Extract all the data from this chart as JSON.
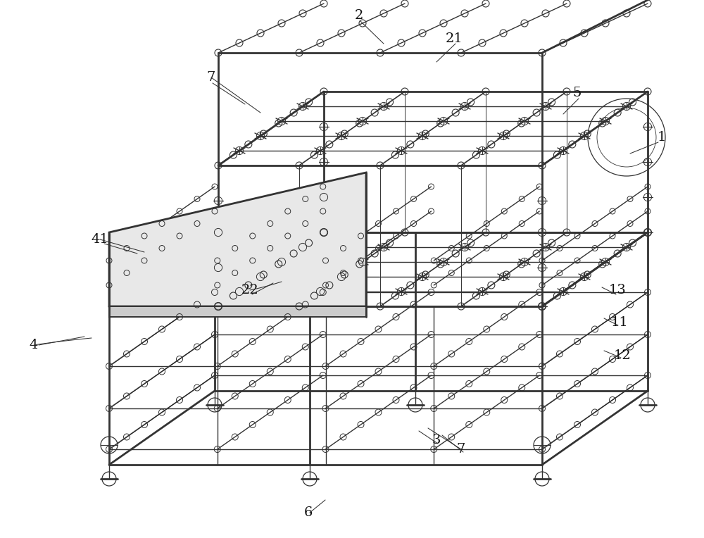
{
  "background_color": "#ffffff",
  "line_color": "#333333",
  "lw_main": 1.4,
  "lw_thin": 0.7,
  "lw_thick": 2.0,
  "lw_med": 1.0,
  "figsize": [
    10.0,
    7.64
  ],
  "dpi": 100,
  "labels": [
    [
      "1",
      940,
      195
    ],
    [
      "2",
      510,
      22
    ],
    [
      "3",
      620,
      625
    ],
    [
      "4",
      48,
      490
    ],
    [
      "5",
      820,
      132
    ],
    [
      "6",
      438,
      728
    ],
    [
      "7",
      300,
      110
    ],
    [
      "7",
      655,
      638
    ],
    [
      "11",
      880,
      458
    ],
    [
      "12",
      884,
      505
    ],
    [
      "13",
      877,
      412
    ],
    [
      "21",
      645,
      55
    ],
    [
      "22",
      355,
      412
    ],
    [
      "41",
      142,
      340
    ]
  ],
  "leaders": [
    [
      [
        935,
        202
      ],
      [
        895,
        218
      ]
    ],
    [
      [
        512,
        30
      ],
      [
        545,
        62
      ]
    ],
    [
      [
        622,
        630
      ],
      [
        595,
        612
      ]
    ],
    [
      [
        55,
        490
      ],
      [
        120,
        478
      ]
    ],
    [
      [
        822,
        140
      ],
      [
        800,
        162
      ]
    ],
    [
      [
        440,
        728
      ],
      [
        462,
        710
      ]
    ],
    [
      [
        302,
        118
      ],
      [
        348,
        148
      ]
    ],
    [
      [
        658,
        642
      ],
      [
        628,
        618
      ]
    ],
    [
      [
        878,
        462
      ],
      [
        858,
        452
      ]
    ],
    [
      [
        882,
        508
      ],
      [
        858,
        498
      ]
    ],
    [
      [
        875,
        418
      ],
      [
        855,
        408
      ]
    ],
    [
      [
        647,
        62
      ],
      [
        620,
        88
      ]
    ],
    [
      [
        358,
        418
      ],
      [
        388,
        402
      ]
    ],
    [
      [
        148,
        346
      ],
      [
        195,
        360
      ]
    ]
  ]
}
